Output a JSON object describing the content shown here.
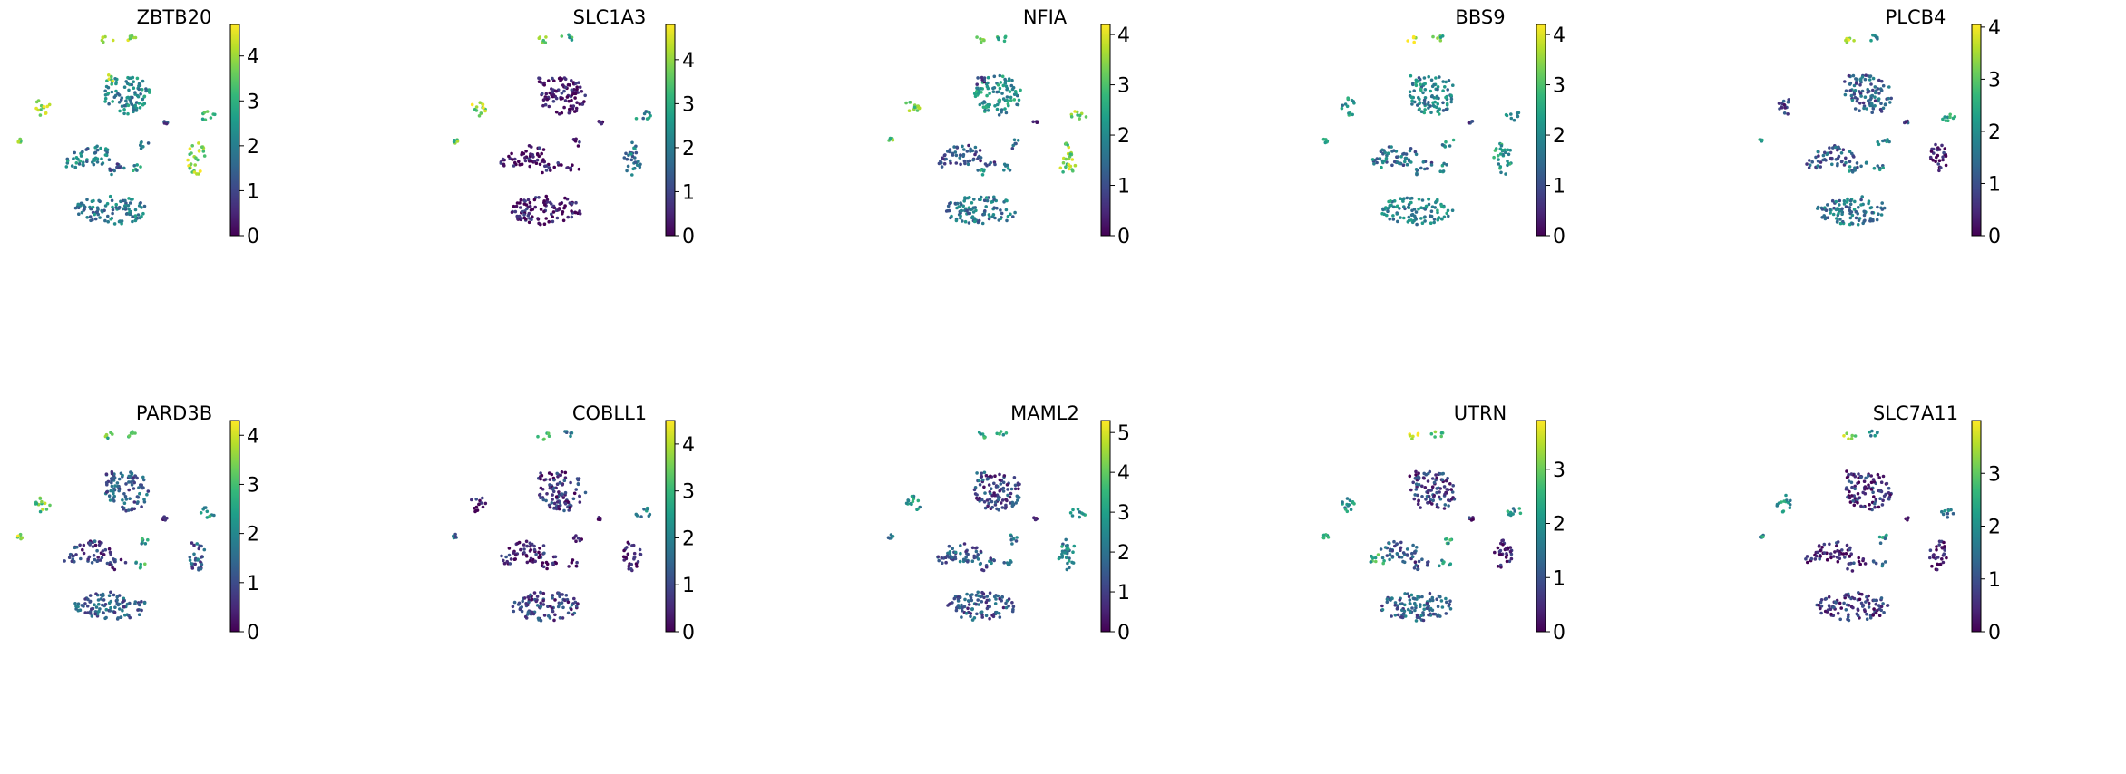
{
  "figure": {
    "description_type": "umap-feature-plot-grid",
    "colormap": "viridis",
    "colormap_stops": [
      "#440154",
      "#482878",
      "#3e4989",
      "#31688e",
      "#26828e",
      "#1f9e89",
      "#35b779",
      "#6ece58",
      "#b5de2b",
      "#fde725"
    ]
  },
  "chart_data": [
    {
      "type": "scatter",
      "title": "ZBTB20",
      "colorbar": {
        "vmin": 0,
        "vmax": 4.7,
        "ticks": [
          0,
          1,
          2,
          3,
          4
        ],
        "tick_labels": [
          "0",
          "1",
          "2",
          "3",
          "4"
        ]
      }
    },
    {
      "type": "scatter",
      "title": "SLC1A3",
      "colorbar": {
        "vmin": 0,
        "vmax": 4.8,
        "ticks": [
          0,
          1,
          2,
          3,
          4
        ],
        "tick_labels": [
          "0",
          "1",
          "2",
          "3",
          "4"
        ]
      }
    },
    {
      "type": "scatter",
      "title": "NFIA",
      "colorbar": {
        "vmin": 0,
        "vmax": 4.2,
        "ticks": [
          0,
          1,
          2,
          3,
          4
        ],
        "tick_labels": [
          "0",
          "1",
          "2",
          "3",
          "4"
        ]
      }
    },
    {
      "type": "scatter",
      "title": "BBS9",
      "colorbar": {
        "vmin": 0,
        "vmax": 4.2,
        "ticks": [
          0,
          1,
          2,
          3,
          4
        ],
        "tick_labels": [
          "0",
          "1",
          "2",
          "3",
          "4"
        ]
      }
    },
    {
      "type": "scatter",
      "title": "PLCB4",
      "colorbar": {
        "vmin": 0,
        "vmax": 4.05,
        "ticks": [
          0,
          1,
          2,
          3,
          4
        ],
        "tick_labels": [
          "0",
          "1",
          "2",
          "3",
          "4"
        ]
      }
    },
    {
      "type": "scatter",
      "title": "PARD3B",
      "colorbar": {
        "vmin": 0,
        "vmax": 4.3,
        "ticks": [
          0,
          1,
          2,
          3,
          4
        ],
        "tick_labels": [
          "0",
          "1",
          "2",
          "3",
          "4"
        ]
      }
    },
    {
      "type": "scatter",
      "title": "COBLL1",
      "colorbar": {
        "vmin": 0,
        "vmax": 4.5,
        "ticks": [
          0,
          1,
          2,
          3,
          4
        ],
        "tick_labels": [
          "0",
          "1",
          "2",
          "3",
          "4"
        ]
      }
    },
    {
      "type": "scatter",
      "title": "MAML2",
      "colorbar": {
        "vmin": 0,
        "vmax": 5.3,
        "ticks": [
          0,
          1,
          2,
          3,
          4,
          5
        ],
        "tick_labels": [
          "0",
          "1",
          "2",
          "3",
          "4",
          "5"
        ]
      }
    },
    {
      "type": "scatter",
      "title": "UTRN",
      "colorbar": {
        "vmin": 0,
        "vmax": 3.9,
        "ticks": [
          0,
          1,
          2,
          3
        ],
        "tick_labels": [
          "0",
          "1",
          "2",
          "3"
        ]
      }
    },
    {
      "type": "scatter",
      "title": "SLC7A11",
      "colorbar": {
        "vmin": 0,
        "vmax": 4.0,
        "ticks": [
          0,
          1,
          2,
          3
        ],
        "tick_labels": [
          "0",
          "1",
          "2",
          "3"
        ]
      }
    }
  ]
}
